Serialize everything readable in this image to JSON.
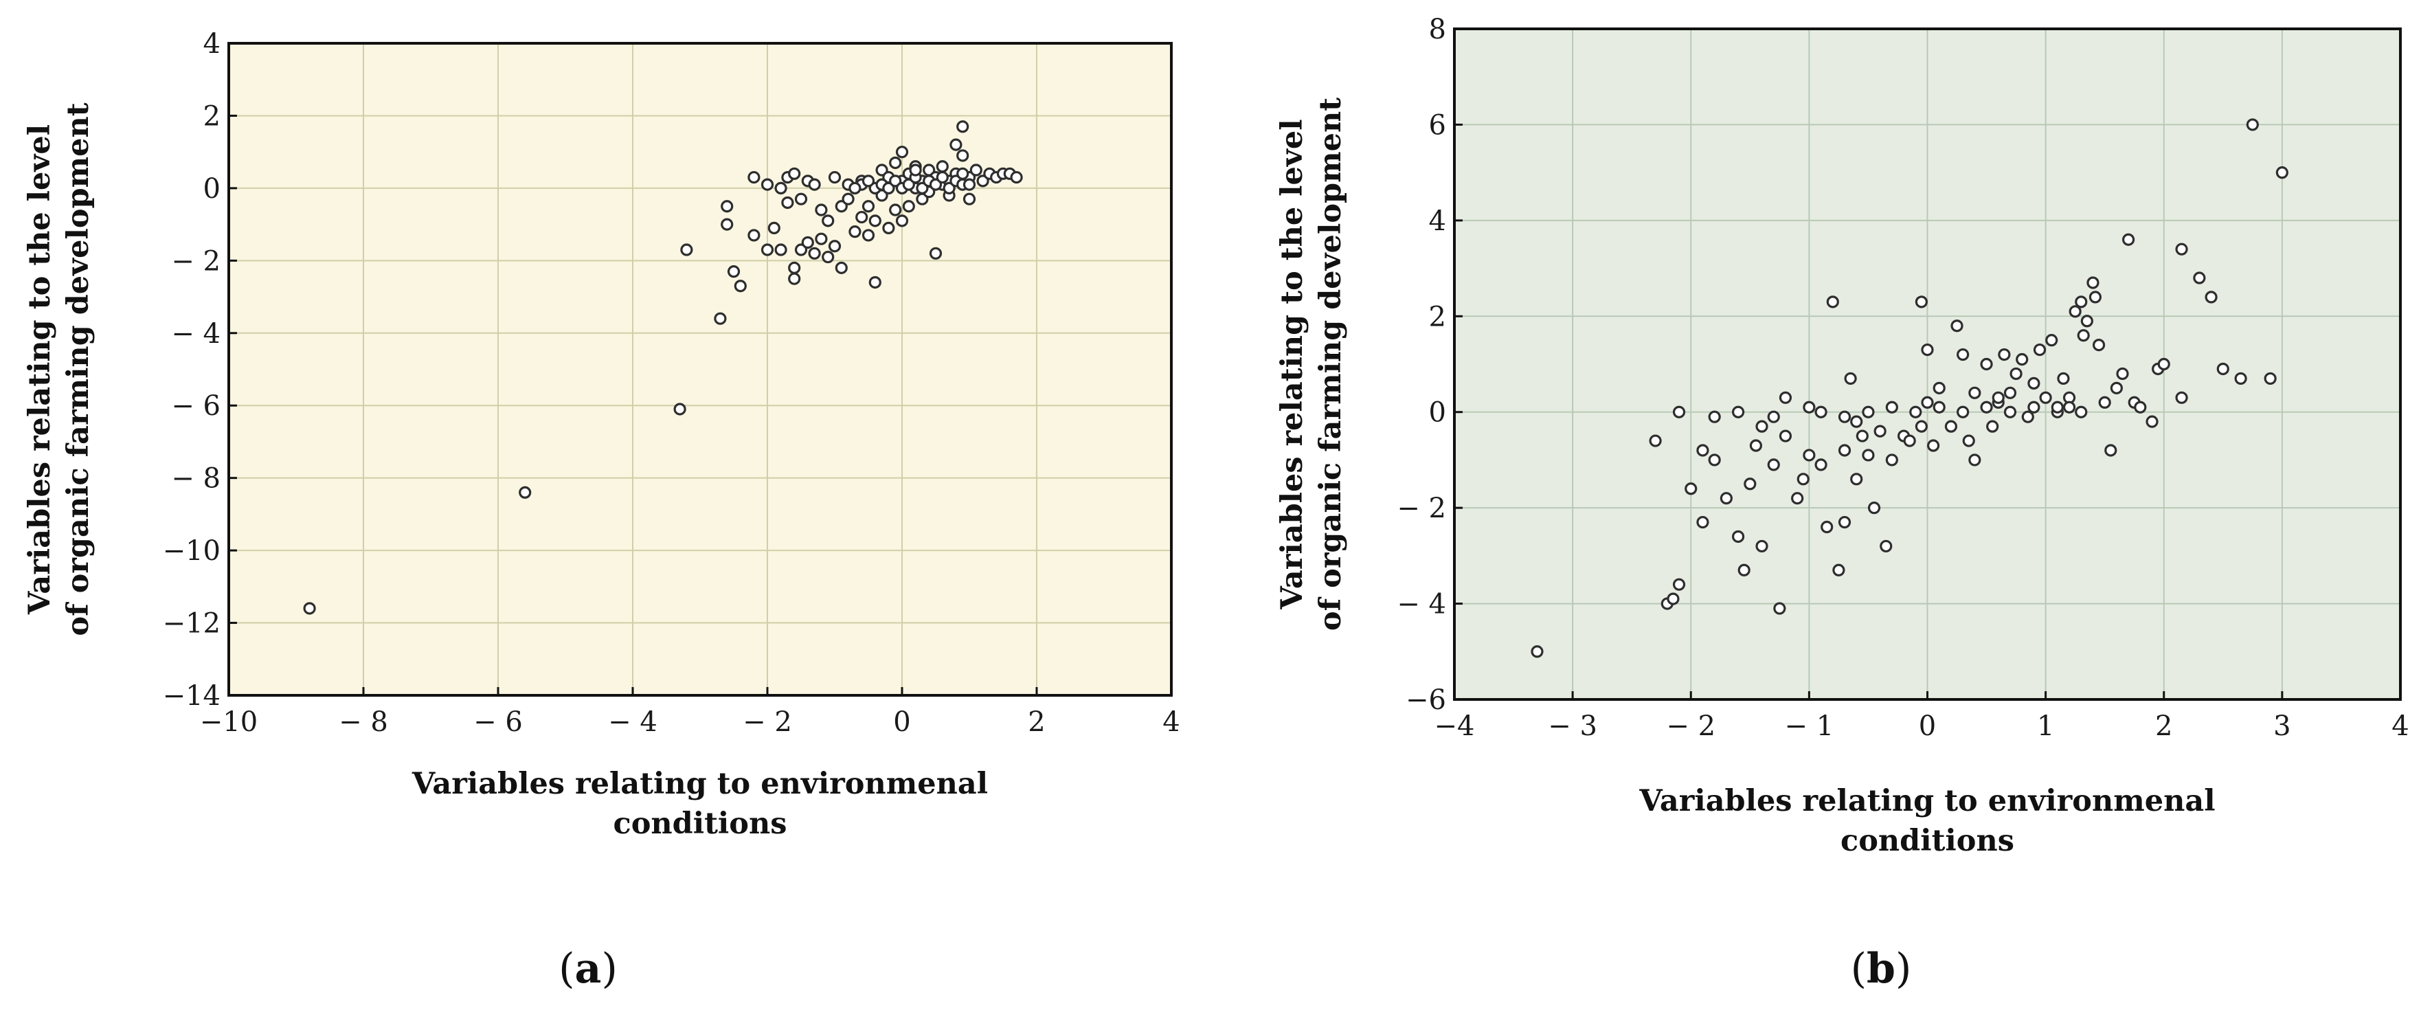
{
  "chart_data": [
    {
      "type": "scatter",
      "panel_label": "a",
      "xlabel": [
        "Variables relating to environmenal",
        "conditions"
      ],
      "ylabel": [
        "Variables relating to the level",
        "of organic farming development"
      ],
      "xlim": [
        -10,
        4
      ],
      "ylim": [
        -14,
        4
      ],
      "xticks": [
        -10,
        -8,
        -6,
        -4,
        -2,
        0,
        2,
        4
      ],
      "yticks": [
        -14,
        -12,
        -10,
        -8,
        -6,
        -4,
        -2,
        0,
        2,
        4
      ],
      "xtick_labels": [
        "−10",
        "− 8",
        "− 6",
        "− 4",
        "− 2",
        "0",
        "2",
        "4"
      ],
      "ytick_labels": [
        "−14",
        "−12",
        "−10",
        "− 8",
        "− 6",
        "− 4",
        "− 2",
        "0",
        "2",
        "4"
      ],
      "background": "#fbf6e1",
      "grid": true,
      "points": [
        [
          -8.8,
          -11.6
        ],
        [
          -5.6,
          -8.4
        ],
        [
          -3.3,
          -6.1
        ],
        [
          -3.2,
          -1.7
        ],
        [
          -2.7,
          -3.6
        ],
        [
          -2.6,
          -0.5
        ],
        [
          -2.5,
          -2.3
        ],
        [
          -2.4,
          -2.7
        ],
        [
          -2.6,
          -1.0
        ],
        [
          -2.2,
          -1.3
        ],
        [
          -2.2,
          0.3
        ],
        [
          -2.0,
          0.1
        ],
        [
          -2.0,
          -1.7
        ],
        [
          -1.9,
          -1.1
        ],
        [
          -1.8,
          -1.7
        ],
        [
          -1.8,
          0.0
        ],
        [
          -1.7,
          -0.4
        ],
        [
          -1.7,
          0.3
        ],
        [
          -1.6,
          -2.5
        ],
        [
          -1.6,
          -2.2
        ],
        [
          -1.6,
          0.4
        ],
        [
          -1.5,
          -0.3
        ],
        [
          -1.5,
          -1.7
        ],
        [
          -1.4,
          -1.5
        ],
        [
          -1.4,
          0.2
        ],
        [
          -1.3,
          -1.8
        ],
        [
          -1.3,
          0.1
        ],
        [
          -1.2,
          -1.4
        ],
        [
          -1.2,
          -0.6
        ],
        [
          -1.1,
          -0.9
        ],
        [
          -1.1,
          -1.9
        ],
        [
          -1.0,
          0.3
        ],
        [
          -1.0,
          -1.6
        ],
        [
          -0.9,
          -0.5
        ],
        [
          -0.9,
          -2.2
        ],
        [
          -0.8,
          0.1
        ],
        [
          -0.8,
          -0.3
        ],
        [
          -0.7,
          -1.2
        ],
        [
          -0.6,
          -0.8
        ],
        [
          -0.6,
          0.2
        ],
        [
          -0.5,
          -1.3
        ],
        [
          -0.5,
          -0.5
        ],
        [
          -0.4,
          -2.6
        ],
        [
          -0.4,
          -0.9
        ],
        [
          -0.3,
          -0.2
        ],
        [
          -0.3,
          0.5
        ],
        [
          -0.2,
          -1.1
        ],
        [
          -0.2,
          0.3
        ],
        [
          -0.1,
          -0.6
        ],
        [
          -0.1,
          0.7
        ],
        [
          0.0,
          -0.9
        ],
        [
          0.0,
          0.2
        ],
        [
          0.0,
          1.0
        ],
        [
          0.1,
          -0.5
        ],
        [
          0.1,
          0.4
        ],
        [
          0.2,
          0.0
        ],
        [
          0.2,
          0.6
        ],
        [
          0.3,
          -0.3
        ],
        [
          0.3,
          0.2
        ],
        [
          0.4,
          0.5
        ],
        [
          0.4,
          -0.1
        ],
        [
          0.5,
          -1.8
        ],
        [
          0.5,
          0.3
        ],
        [
          0.6,
          0.1
        ],
        [
          0.6,
          0.6
        ],
        [
          0.7,
          0.2
        ],
        [
          0.7,
          -0.2
        ],
        [
          0.8,
          0.4
        ],
        [
          0.8,
          1.2
        ],
        [
          0.9,
          1.7
        ],
        [
          0.9,
          0.9
        ],
        [
          1.0,
          0.3
        ],
        [
          1.0,
          -0.3
        ],
        [
          1.1,
          0.5
        ],
        [
          1.2,
          0.2
        ],
        [
          1.3,
          0.4
        ],
        [
          1.4,
          0.3
        ],
        [
          1.5,
          0.4
        ],
        [
          1.6,
          0.4
        ],
        [
          1.7,
          0.3
        ],
        [
          -0.4,
          0.0
        ],
        [
          -0.3,
          0.1
        ],
        [
          -0.2,
          0.0
        ],
        [
          -0.1,
          0.2
        ],
        [
          0.0,
          0.0
        ],
        [
          0.1,
          0.1
        ],
        [
          0.2,
          0.3
        ],
        [
          0.3,
          0.0
        ],
        [
          0.4,
          0.2
        ],
        [
          0.5,
          0.1
        ],
        [
          0.6,
          0.3
        ],
        [
          0.7,
          0.0
        ],
        [
          0.8,
          0.2
        ],
        [
          0.9,
          0.1
        ],
        [
          1.0,
          0.1
        ],
        [
          -0.6,
          0.1
        ],
        [
          -0.5,
          0.2
        ],
        [
          -0.7,
          0.0
        ],
        [
          0.2,
          0.5
        ],
        [
          0.9,
          0.4
        ]
      ]
    },
    {
      "type": "scatter",
      "panel_label": "b",
      "xlabel": [
        "Variables relating to environmenal",
        "conditions"
      ],
      "ylabel": [
        "Variables relating to the level",
        "of organic farming development"
      ],
      "xlim": [
        -4,
        4
      ],
      "ylim": [
        -6,
        8
      ],
      "xticks": [
        -4,
        -3,
        -2,
        -1,
        0,
        1,
        2,
        3,
        4
      ],
      "yticks": [
        -6,
        -4,
        -2,
        0,
        2,
        4,
        6,
        8
      ],
      "xtick_labels": [
        "−4",
        "− 3",
        "− 2",
        "− 1",
        "0",
        "1",
        "2",
        "3",
        "4"
      ],
      "ytick_labels": [
        "−6",
        "− 4",
        "− 2",
        "0",
        "2",
        "4",
        "6",
        "8"
      ],
      "background": "#e6ece2",
      "grid": true,
      "points": [
        [
          -3.3,
          -5.0
        ],
        [
          -2.3,
          -0.6
        ],
        [
          -2.2,
          -4.0
        ],
        [
          -2.15,
          -3.9
        ],
        [
          -2.1,
          -3.6
        ],
        [
          -2.1,
          0.0
        ],
        [
          -2.0,
          -1.6
        ],
        [
          -1.9,
          -2.3
        ],
        [
          -1.9,
          -0.8
        ],
        [
          -1.8,
          -1.0
        ],
        [
          -1.8,
          -0.1
        ],
        [
          -1.7,
          -1.8
        ],
        [
          -1.6,
          -2.6
        ],
        [
          -1.55,
          -3.3
        ],
        [
          -1.5,
          -1.5
        ],
        [
          -1.45,
          -0.7
        ],
        [
          -1.4,
          -2.8
        ],
        [
          -1.3,
          -1.1
        ],
        [
          -1.25,
          -4.1
        ],
        [
          -1.2,
          0.3
        ],
        [
          -1.2,
          -0.5
        ],
        [
          -1.1,
          -1.8
        ],
        [
          -1.05,
          -1.4
        ],
        [
          -1.0,
          -0.9
        ],
        [
          -0.9,
          -1.1
        ],
        [
          -0.85,
          -2.4
        ],
        [
          -0.8,
          2.3
        ],
        [
          -0.75,
          -3.3
        ],
        [
          -0.7,
          -2.3
        ],
        [
          -0.7,
          -0.8
        ],
        [
          -0.65,
          0.7
        ],
        [
          -0.6,
          -1.4
        ],
        [
          -0.55,
          -0.5
        ],
        [
          -0.5,
          -0.9
        ],
        [
          -0.45,
          -2.0
        ],
        [
          -0.4,
          -0.4
        ],
        [
          -0.35,
          -2.8
        ],
        [
          -0.3,
          -1.0
        ],
        [
          -0.2,
          -0.5
        ],
        [
          -0.15,
          -0.6
        ],
        [
          -0.05,
          2.3
        ],
        [
          -0.05,
          -0.3
        ],
        [
          0.0,
          1.3
        ],
        [
          0.05,
          -0.7
        ],
        [
          0.1,
          0.5
        ],
        [
          0.2,
          -0.3
        ],
        [
          0.25,
          1.8
        ],
        [
          0.3,
          1.2
        ],
        [
          0.35,
          -0.6
        ],
        [
          0.4,
          -1.0
        ],
        [
          0.4,
          0.4
        ],
        [
          0.5,
          1.0
        ],
        [
          0.55,
          -0.3
        ],
        [
          0.6,
          0.2
        ],
        [
          0.65,
          1.2
        ],
        [
          0.7,
          0.4
        ],
        [
          0.75,
          0.8
        ],
        [
          0.8,
          1.1
        ],
        [
          0.85,
          -0.1
        ],
        [
          0.9,
          0.6
        ],
        [
          0.95,
          1.3
        ],
        [
          1.0,
          0.3
        ],
        [
          1.05,
          1.5
        ],
        [
          1.1,
          0.0
        ],
        [
          1.15,
          0.7
        ],
        [
          1.2,
          0.3
        ],
        [
          1.25,
          2.1
        ],
        [
          1.3,
          2.3
        ],
        [
          1.32,
          1.6
        ],
        [
          1.35,
          1.9
        ],
        [
          1.4,
          2.7
        ],
        [
          1.42,
          2.4
        ],
        [
          1.45,
          1.4
        ],
        [
          1.5,
          0.2
        ],
        [
          1.55,
          -0.8
        ],
        [
          1.6,
          0.5
        ],
        [
          1.65,
          0.8
        ],
        [
          1.7,
          3.6
        ],
        [
          1.75,
          0.2
        ],
        [
          1.8,
          0.1
        ],
        [
          1.9,
          -0.2
        ],
        [
          1.95,
          0.9
        ],
        [
          2.0,
          1.0
        ],
        [
          2.15,
          3.4
        ],
        [
          2.15,
          0.3
        ],
        [
          2.3,
          2.8
        ],
        [
          2.4,
          2.4
        ],
        [
          2.5,
          0.9
        ],
        [
          2.65,
          0.7
        ],
        [
          2.75,
          6.0
        ],
        [
          2.9,
          0.7
        ],
        [
          3.0,
          5.0
        ],
        [
          -1.6,
          0.0
        ],
        [
          -1.3,
          -0.1
        ],
        [
          -1.0,
          0.1
        ],
        [
          -0.9,
          0.0
        ],
        [
          -0.7,
          -0.1
        ],
        [
          -0.5,
          0.0
        ],
        [
          -0.3,
          0.1
        ],
        [
          -0.1,
          0.0
        ],
        [
          0.1,
          0.1
        ],
        [
          0.3,
          0.0
        ],
        [
          0.5,
          0.1
        ],
        [
          0.7,
          0.0
        ],
        [
          0.9,
          0.1
        ],
        [
          1.1,
          0.1
        ],
        [
          1.3,
          0.0
        ],
        [
          -1.4,
          -0.3
        ],
        [
          -0.6,
          -0.2
        ],
        [
          0.0,
          0.2
        ],
        [
          0.6,
          0.3
        ],
        [
          1.2,
          0.1
        ]
      ]
    }
  ]
}
